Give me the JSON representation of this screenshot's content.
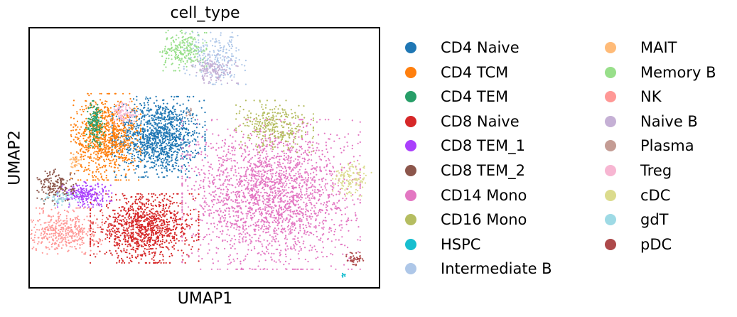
{
  "chart_data": {
    "type": "scatter",
    "title": "cell_type",
    "xlabel": "UMAP1",
    "ylabel": "UMAP2",
    "grid": false,
    "show_ticks": false,
    "legend_position": "right",
    "legend_columns": 2,
    "series": [
      {
        "name": "CD4 Naive",
        "color": "#1f77b4",
        "center": [
          0.37,
          0.58
        ],
        "spread": [
          0.06,
          0.07
        ],
        "count": 1200,
        "shape": "cluster"
      },
      {
        "name": "CD4 TCM",
        "color": "#ff7f0e",
        "center": [
          0.22,
          0.58
        ],
        "spread": [
          0.045,
          0.075
        ],
        "count": 900,
        "shape": "cluster"
      },
      {
        "name": "CD4 TEM",
        "color": "#279e68",
        "center": [
          0.19,
          0.63
        ],
        "spread": [
          0.012,
          0.04
        ],
        "count": 160,
        "shape": "cluster"
      },
      {
        "name": "CD8 Naive",
        "color": "#d62728",
        "center": [
          0.33,
          0.23
        ],
        "spread": [
          0.07,
          0.06
        ],
        "count": 1100,
        "shape": "cluster"
      },
      {
        "name": "CD8 TEM_1",
        "color": "#aa40fc",
        "center": [
          0.16,
          0.36
        ],
        "spread": [
          0.035,
          0.022
        ],
        "count": 220,
        "shape": "cluster"
      },
      {
        "name": "CD8 TEM_2",
        "color": "#8c564b",
        "center": [
          0.08,
          0.39
        ],
        "spread": [
          0.025,
          0.03
        ],
        "count": 170,
        "shape": "cluster"
      },
      {
        "name": "CD14 Mono",
        "color": "#e377c2",
        "center": [
          0.69,
          0.36
        ],
        "spread": [
          0.115,
          0.13
        ],
        "count": 2300,
        "shape": "cluster"
      },
      {
        "name": "CD16 Mono",
        "color": "#b5bd61",
        "center": [
          0.7,
          0.62
        ],
        "spread": [
          0.05,
          0.045
        ],
        "count": 320,
        "shape": "cluster"
      },
      {
        "name": "HSPC",
        "color": "#17becf",
        "center": [
          0.894,
          0.05
        ],
        "spread": [
          0.003,
          0.004
        ],
        "count": 8,
        "shape": "cluster"
      },
      {
        "name": "Intermediate B",
        "color": "#aec7e8",
        "center": [
          0.53,
          0.88
        ],
        "spread": [
          0.04,
          0.045
        ],
        "count": 240,
        "shape": "cluster"
      },
      {
        "name": "MAIT",
        "color": "#ffbb78",
        "center": [
          0.135,
          0.48
        ],
        "spread": [
          0.008,
          0.015
        ],
        "count": 35,
        "shape": "cluster"
      },
      {
        "name": "Memory B",
        "color": "#98df8a",
        "center": [
          0.44,
          0.91
        ],
        "spread": [
          0.03,
          0.035
        ],
        "count": 230,
        "shape": "cluster"
      },
      {
        "name": "NK",
        "color": "#ff9896",
        "center": [
          0.1,
          0.22
        ],
        "spread": [
          0.05,
          0.04
        ],
        "count": 420,
        "shape": "cluster"
      },
      {
        "name": "Naive B",
        "color": "#c5b0d5",
        "center": [
          0.53,
          0.84
        ],
        "spread": [
          0.03,
          0.025
        ],
        "count": 140,
        "shape": "cluster"
      },
      {
        "name": "Plasma",
        "color": "#c49c94",
        "center": [
          0.46,
          0.67
        ],
        "spread": [
          0.006,
          0.01
        ],
        "count": 10,
        "shape": "cluster"
      },
      {
        "name": "Treg",
        "color": "#f7b6d2",
        "center": [
          0.27,
          0.67
        ],
        "spread": [
          0.02,
          0.02
        ],
        "count": 90,
        "shape": "cluster"
      },
      {
        "name": "cDC",
        "color": "#dbdb8d",
        "center": [
          0.92,
          0.42
        ],
        "spread": [
          0.025,
          0.03
        ],
        "count": 120,
        "shape": "cluster"
      },
      {
        "name": "gdT",
        "color": "#9edae5",
        "center": [
          0.09,
          0.34
        ],
        "spread": [
          0.025,
          0.015
        ],
        "count": 60,
        "shape": "cluster"
      },
      {
        "name": "pDC",
        "color": "#ad494a",
        "center": [
          0.93,
          0.115
        ],
        "spread": [
          0.012,
          0.012
        ],
        "count": 45,
        "shape": "cluster"
      }
    ]
  }
}
